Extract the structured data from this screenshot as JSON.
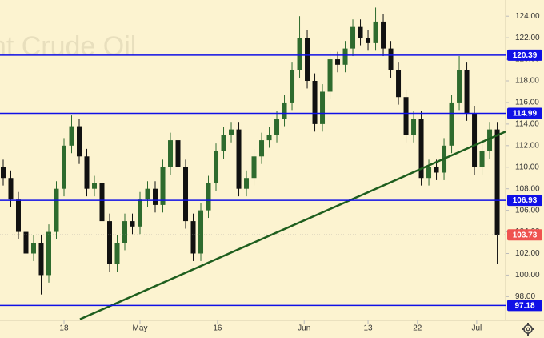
{
  "chart_data": {
    "type": "candlestick",
    "watermark": "ent Crude Oil",
    "background": "#fcf3d0",
    "up_color": "#2e6b2e",
    "down_color": "#111111",
    "open": [
      110,
      109,
      107,
      104,
      102,
      103,
      100,
      104,
      108,
      112,
      113.8,
      111,
      108,
      108.5,
      105,
      101,
      103,
      105,
      104.5,
      107,
      108,
      106.5,
      110,
      112.5,
      110,
      105,
      102,
      106,
      108.5,
      111.5,
      113,
      113.5,
      108,
      109,
      111,
      112.5,
      113,
      114.5,
      116,
      119,
      122,
      118,
      114,
      117,
      120,
      119.5,
      121,
      123,
      122,
      121.5,
      123.5,
      121,
      119,
      116.5,
      113,
      114.5,
      109,
      110,
      109.5,
      112,
      116,
      119,
      115,
      110,
      111.5,
      113.5
    ],
    "high": [
      110.7,
      109.7,
      107.7,
      104.7,
      103.7,
      103.7,
      104.7,
      108.7,
      112.7,
      114.8,
      114.5,
      111.7,
      109.2,
      109.2,
      105.7,
      103.7,
      105.7,
      105.7,
      107.7,
      108.7,
      108.7,
      110.7,
      113.2,
      113.2,
      110.7,
      105.7,
      106.7,
      109.2,
      112.2,
      113.7,
      114.2,
      114.2,
      109.7,
      111.7,
      113.2,
      113.7,
      115.2,
      116.7,
      119.7,
      124,
      122.7,
      118.7,
      117.7,
      120.7,
      120.7,
      121.7,
      123.7,
      123.7,
      122.7,
      124.8,
      124.2,
      121.7,
      119.7,
      117.2,
      115.2,
      115.2,
      110.7,
      110.7,
      112.7,
      116.7,
      120.3,
      119.7,
      115.7,
      112.2,
      114.2,
      114.2
    ],
    "low": [
      108.3,
      106.3,
      103.3,
      101.3,
      101.3,
      98.2,
      99.3,
      103.3,
      107.3,
      111.3,
      110.3,
      107.3,
      107.3,
      104.3,
      100.3,
      100.3,
      102.3,
      103.8,
      103.8,
      106.3,
      105.8,
      105.8,
      109.3,
      109.3,
      104.3,
      101.3,
      101.3,
      105.3,
      107.8,
      110.8,
      112.3,
      107.3,
      107.3,
      108.3,
      110.3,
      111.8,
      112.3,
      113.8,
      115.3,
      118.3,
      117.3,
      113.3,
      113.3,
      116.3,
      118.8,
      118.8,
      120.3,
      121.3,
      120.8,
      120.8,
      120.3,
      118.3,
      115.8,
      112.3,
      112.3,
      108.3,
      108.3,
      108.8,
      108.8,
      111.3,
      115.3,
      114.3,
      109.3,
      109.3,
      110.8,
      101
    ],
    "close": [
      109,
      107,
      104,
      102,
      103,
      100,
      104,
      108,
      112,
      113.8,
      111,
      108,
      108.5,
      105,
      101,
      103,
      105,
      104.5,
      107,
      108,
      106.5,
      110,
      112.5,
      110,
      105,
      102,
      106,
      108.5,
      111.5,
      113,
      113.5,
      108,
      109,
      111,
      112.5,
      113,
      114.5,
      116,
      119,
      122,
      118,
      114,
      117,
      120,
      119.5,
      121,
      123,
      122,
      121.5,
      123.5,
      121,
      119,
      116.5,
      113,
      114.5,
      109,
      110,
      109.5,
      112,
      116,
      119,
      115,
      110,
      111.5,
      113.5,
      103.73
    ],
    "last_price": 103.73,
    "last_price_color": "#ef5350",
    "levels": [
      {
        "value": 120.39,
        "color": "#1010e6"
      },
      {
        "value": 114.99,
        "color": "#1010e6"
      },
      {
        "value": 106.93,
        "color": "#1010e6"
      },
      {
        "value": 97.18,
        "color": "#1010e6"
      }
    ],
    "trendline": {
      "x": [
        10.1,
        66.1
      ],
      "y": [
        95.9,
        113.3
      ],
      "color": "#1e5e1e"
    },
    "xlim": [
      -0.42,
      66.1
    ],
    "ylim": [
      95.8,
      125.5
    ],
    "xticks": [
      {
        "value": 8,
        "label": "18"
      },
      {
        "value": 18,
        "label": "May"
      },
      {
        "value": 28.2,
        "label": "16"
      },
      {
        "value": 39.6,
        "label": "Jun"
      },
      {
        "value": 48,
        "label": "13"
      },
      {
        "value": 54.5,
        "label": "22"
      },
      {
        "value": 62.3,
        "label": "Jul"
      }
    ],
    "yticks": [
      {
        "value": 98,
        "label": "98.00"
      },
      {
        "value": 100,
        "label": "100.00"
      },
      {
        "value": 102,
        "label": "102.00"
      },
      {
        "value": 104,
        "label": "104.00"
      },
      {
        "value": 106,
        "label": "106.00"
      },
      {
        "value": 108,
        "label": "108.00"
      },
      {
        "value": 110,
        "label": "110.00"
      },
      {
        "value": 112,
        "label": "112.00"
      },
      {
        "value": 114,
        "label": "114.00"
      },
      {
        "value": 116,
        "label": "116.00"
      },
      {
        "value": 118,
        "label": "118.00"
      },
      {
        "value": 120,
        "label": "120.00"
      },
      {
        "value": 122,
        "label": "122.00"
      },
      {
        "value": 124,
        "label": "124.00"
      }
    ]
  }
}
